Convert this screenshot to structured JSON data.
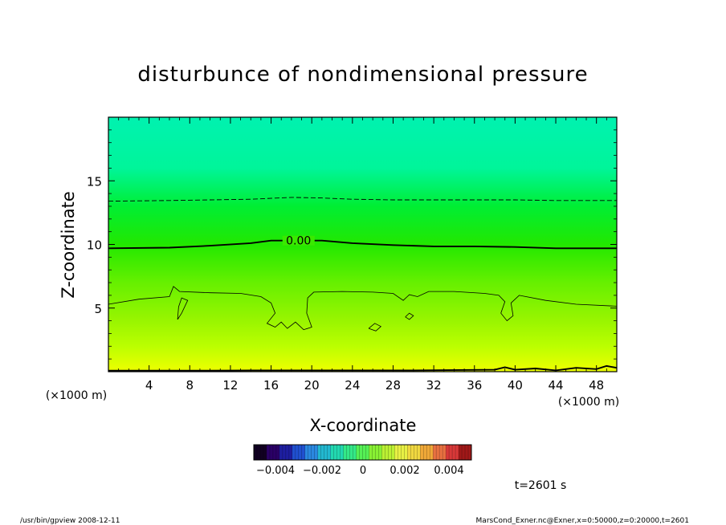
{
  "chart_data": {
    "type": "heatmap",
    "title": "disturbunce of nondimensional pressure",
    "xlabel": "X-coordinate",
    "ylabel": "Z-coordinate",
    "x_unit_left": "(×1000 m)",
    "x_unit_right": "(×1000 m)",
    "xlim": [
      0,
      50
    ],
    "ylim": [
      0,
      20
    ],
    "x_ticks": [
      4,
      8,
      12,
      16,
      20,
      24,
      28,
      32,
      36,
      40,
      44,
      48
    ],
    "x_tick_labels": [
      "4",
      "8",
      "12",
      "16",
      "20",
      "24",
      "28",
      "32",
      "36",
      "40",
      "44",
      "48"
    ],
    "y_ticks": [
      5,
      10,
      15
    ],
    "y_tick_labels": [
      "5",
      "10",
      "15"
    ],
    "color_levels": [
      {
        "z": 0,
        "color": "#eeff00"
      },
      {
        "z": 2,
        "color": "#bbff00"
      },
      {
        "z": 4,
        "color": "#99f500"
      },
      {
        "z": 7,
        "color": "#66f000"
      },
      {
        "z": 10,
        "color": "#22e800"
      },
      {
        "z": 13,
        "color": "#00ee33"
      },
      {
        "z": 16,
        "color": "#00f59a"
      },
      {
        "z": 20,
        "color": "#00f2b0"
      }
    ],
    "contours": [
      {
        "level_label": "0.00",
        "style": "solid-bold",
        "label_x": 18.7,
        "label_z": 10.3,
        "points": [
          [
            0,
            9.7
          ],
          [
            6,
            9.75
          ],
          [
            10,
            9.9
          ],
          [
            14,
            10.1
          ],
          [
            16,
            10.3
          ],
          [
            18.7,
            10.3
          ],
          [
            21,
            10.3
          ],
          [
            24,
            10.1
          ],
          [
            28,
            9.95
          ],
          [
            32,
            9.85
          ],
          [
            36,
            9.85
          ],
          [
            40,
            9.8
          ],
          [
            44,
            9.7
          ],
          [
            48,
            9.7
          ],
          [
            50,
            9.7
          ]
        ]
      },
      {
        "level_label": "",
        "style": "dashed",
        "points": [
          [
            0,
            13.4
          ],
          [
            6,
            13.45
          ],
          [
            10,
            13.5
          ],
          [
            14,
            13.55
          ],
          [
            18,
            13.7
          ],
          [
            21,
            13.65
          ],
          [
            24,
            13.55
          ],
          [
            28,
            13.5
          ],
          [
            32,
            13.5
          ],
          [
            36,
            13.5
          ],
          [
            40,
            13.5
          ],
          [
            44,
            13.45
          ],
          [
            48,
            13.45
          ],
          [
            50,
            13.45
          ]
        ]
      },
      {
        "level_label": "",
        "style": "solid-thin",
        "points": [
          [
            0,
            5.3
          ],
          [
            3,
            5.7
          ],
          [
            6,
            5.9
          ],
          [
            6.4,
            6.7
          ],
          [
            7,
            6.3
          ],
          [
            10,
            6.2
          ],
          [
            13,
            6.15
          ],
          [
            15,
            5.9
          ],
          [
            16,
            5.4
          ],
          [
            16.4,
            4.6
          ],
          [
            15.6,
            3.8
          ],
          [
            16.4,
            3.5
          ],
          [
            17,
            3.9
          ],
          [
            17.6,
            3.4
          ],
          [
            18.4,
            3.9
          ],
          [
            19.2,
            3.3
          ],
          [
            20,
            3.5
          ],
          [
            19.5,
            4.6
          ],
          [
            19.6,
            5.8
          ],
          [
            20.2,
            6.25
          ],
          [
            23,
            6.3
          ],
          [
            26,
            6.25
          ],
          [
            28,
            6.15
          ],
          [
            29,
            5.6
          ],
          [
            29.6,
            6.05
          ],
          [
            30.4,
            5.9
          ],
          [
            31.5,
            6.3
          ],
          [
            34,
            6.3
          ],
          [
            37,
            6.15
          ],
          [
            38.4,
            6.0
          ],
          [
            39,
            5.5
          ],
          [
            38.6,
            4.6
          ],
          [
            39.2,
            4.0
          ],
          [
            39.8,
            4.4
          ],
          [
            39.6,
            5.4
          ],
          [
            40.4,
            6.0
          ],
          [
            43,
            5.6
          ],
          [
            46,
            5.3
          ],
          [
            50,
            5.15
          ]
        ]
      },
      {
        "level_label": "",
        "style": "solid-thin",
        "points": [
          [
            6.8,
            4.1
          ],
          [
            7.2,
            4.6
          ],
          [
            7.8,
            5.6
          ],
          [
            7.2,
            5.8
          ],
          [
            6.9,
            5.1
          ],
          [
            6.8,
            4.1
          ]
        ]
      },
      {
        "level_label": "",
        "style": "solid-thin",
        "points": [
          [
            25.6,
            3.4
          ],
          [
            26.2,
            3.8
          ],
          [
            26.8,
            3.55
          ],
          [
            26.3,
            3.2
          ],
          [
            25.6,
            3.4
          ]
        ]
      },
      {
        "level_label": "",
        "style": "solid-thin",
        "points": [
          [
            29.2,
            4.3
          ],
          [
            29.6,
            4.6
          ],
          [
            30.0,
            4.4
          ],
          [
            29.6,
            4.1
          ],
          [
            29.2,
            4.3
          ]
        ]
      },
      {
        "level_label": "",
        "style": "solid-bold",
        "points": [
          [
            0,
            0.08
          ],
          [
            10,
            0.08
          ],
          [
            14,
            0.1
          ],
          [
            20,
            0.1
          ],
          [
            30,
            0.1
          ],
          [
            38,
            0.15
          ],
          [
            39,
            0.35
          ],
          [
            40,
            0.15
          ],
          [
            42,
            0.25
          ],
          [
            44,
            0.1
          ],
          [
            46,
            0.3
          ],
          [
            48,
            0.2
          ],
          [
            49,
            0.45
          ],
          [
            50,
            0.3
          ]
        ]
      }
    ],
    "colorbar": {
      "tick_labels": [
        "−0.004",
        "−0.002",
        "0",
        "0.002",
        "0.004"
      ],
      "colors": [
        "#110022",
        "#2a0066",
        "#1e1ea0",
        "#2050d0",
        "#2a88e0",
        "#22b8d0",
        "#22d8b0",
        "#33e888",
        "#55f055",
        "#88f033",
        "#bbf033",
        "#e8f044",
        "#f0d840",
        "#f0a838",
        "#e87040",
        "#d83838",
        "#a01818"
      ]
    },
    "annotation": "t=2601 s"
  },
  "footer": {
    "left": "/usr/bin/gpview   2008-12-11",
    "right": "MarsCond_Exner.nc@Exner,x=0:50000,z=0:20000,t=2601"
  }
}
